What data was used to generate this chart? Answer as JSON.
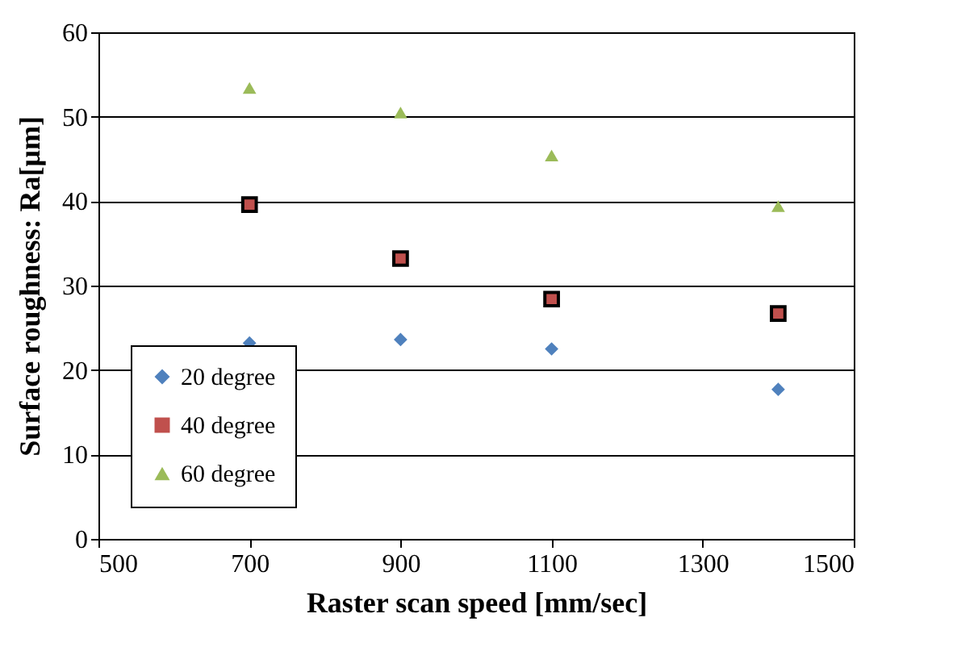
{
  "chart_data": {
    "type": "scatter",
    "xlabel": "Raster scan speed [mm/sec]",
    "ylabel": "Surface roughness: Ra[μm]",
    "x": [
      700,
      900,
      1100,
      1400
    ],
    "series": [
      {
        "name": "20 degree",
        "color": "#4f81bd",
        "marker": "diamond",
        "values": [
          23.2,
          23.6,
          22.5,
          17.7
        ]
      },
      {
        "name": "40 degree",
        "color": "#c0504d",
        "marker": "square",
        "values": [
          39.6,
          33.2,
          28.4,
          26.7
        ]
      },
      {
        "name": "60 degree",
        "color": "#9bbb59",
        "marker": "triangle",
        "values": [
          53.4,
          50.5,
          45.4,
          39.4
        ]
      }
    ],
    "xlim": [
      500,
      1500
    ],
    "xticks": [
      500,
      700,
      900,
      1100,
      1300,
      1500
    ],
    "ylim": [
      0,
      60
    ],
    "yticks": [
      0,
      10,
      20,
      30,
      40,
      50,
      60
    ],
    "grid": "y",
    "legend": "bottom left"
  }
}
